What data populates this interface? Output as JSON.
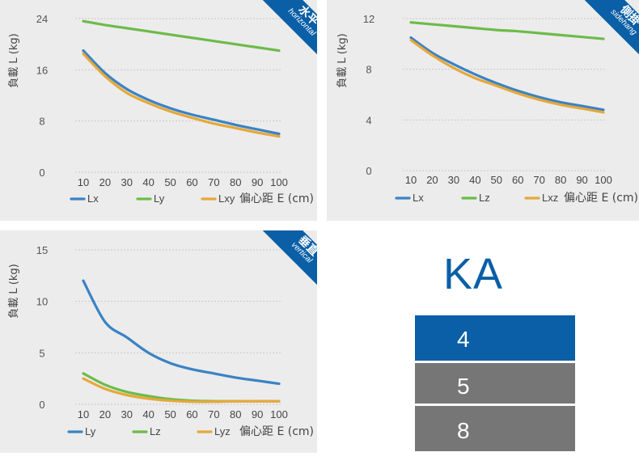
{
  "colors": {
    "blue": "#3a83c4",
    "green": "#6dbb4a",
    "orange": "#e6a83a",
    "badge": "#0a5fa6",
    "ka_gray": "#767676"
  },
  "chart_data": [
    {
      "type": "line",
      "badge": {
        "cn": "水平",
        "en": "horizontal"
      },
      "ylabel": "負載 L (kg)",
      "xlabel": "偏心距 E (cm)",
      "x": [
        10,
        20,
        30,
        40,
        50,
        60,
        70,
        80,
        90,
        100
      ],
      "ylim": [
        0,
        24
      ],
      "yticks": [
        0,
        8,
        16,
        24
      ],
      "series": [
        {
          "name": "Lx",
          "color": "blue",
          "values": [
            19,
            15.5,
            13,
            11.3,
            10,
            9,
            8.2,
            7.4,
            6.7,
            6
          ]
        },
        {
          "name": "Ly",
          "color": "green",
          "values": [
            23.6,
            23,
            22.5,
            22,
            21.5,
            21,
            20.5,
            20,
            19.5,
            19
          ]
        },
        {
          "name": "Lxy",
          "color": "orange",
          "values": [
            18.5,
            15,
            12.4,
            10.8,
            9.5,
            8.5,
            7.6,
            6.9,
            6.2,
            5.6
          ]
        }
      ]
    },
    {
      "type": "line",
      "badge": {
        "cn": "側掛",
        "en": "sidehang"
      },
      "ylabel": "負載 L (kg)",
      "xlabel": "偏心距 E (cm)",
      "x": [
        10,
        20,
        30,
        40,
        50,
        60,
        70,
        80,
        90,
        100
      ],
      "ylim": [
        0,
        12
      ],
      "yticks": [
        0,
        4,
        8,
        12
      ],
      "series": [
        {
          "name": "Lx",
          "color": "blue",
          "values": [
            10.5,
            9.3,
            8.4,
            7.6,
            6.9,
            6.3,
            5.8,
            5.4,
            5.1,
            4.8
          ]
        },
        {
          "name": "Lz",
          "color": "green",
          "values": [
            11.7,
            11.55,
            11.4,
            11.25,
            11.1,
            11,
            10.85,
            10.7,
            10.55,
            10.4
          ]
        },
        {
          "name": "Lxz",
          "color": "orange",
          "values": [
            10.3,
            9.1,
            8.1,
            7.3,
            6.7,
            6.1,
            5.6,
            5.2,
            4.9,
            4.6
          ]
        }
      ]
    },
    {
      "type": "line",
      "badge": {
        "cn": "垂直",
        "en": "vertical"
      },
      "ylabel": "負載 L (kg)",
      "xlabel": "偏心距 E (cm)",
      "x": [
        10,
        20,
        30,
        40,
        50,
        60,
        70,
        80,
        90,
        100
      ],
      "ylim": [
        0,
        15
      ],
      "yticks": [
        0,
        5,
        10,
        15
      ],
      "series": [
        {
          "name": "Ly",
          "color": "blue",
          "values": [
            12,
            8,
            6.5,
            5,
            4,
            3.4,
            3,
            2.6,
            2.3,
            2
          ]
        },
        {
          "name": "Lz",
          "color": "green",
          "values": [
            3,
            1.9,
            1.2,
            0.8,
            0.5,
            0.35,
            0.3,
            0.3,
            0.3,
            0.3
          ]
        },
        {
          "name": "Lyz",
          "color": "orange",
          "values": [
            2.5,
            1.5,
            0.9,
            0.55,
            0.35,
            0.25,
            0.25,
            0.3,
            0.3,
            0.3
          ]
        }
      ]
    }
  ],
  "ka_table": {
    "title": "KA",
    "rows": [
      "4",
      "5",
      "8"
    ]
  }
}
